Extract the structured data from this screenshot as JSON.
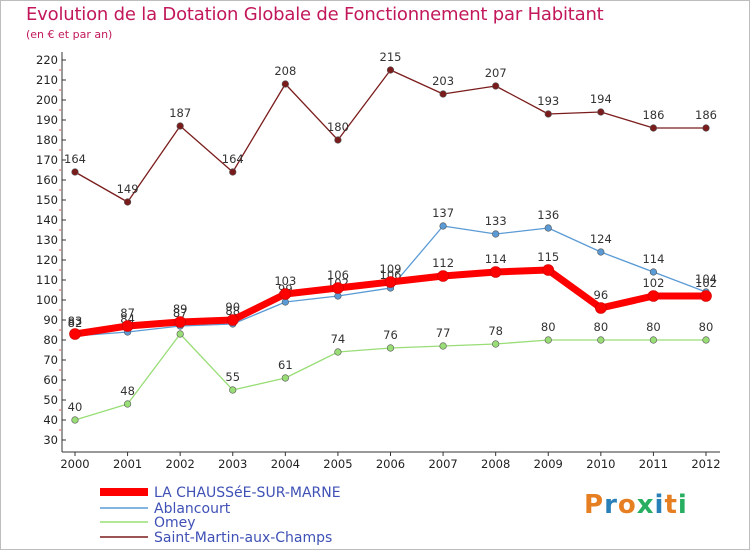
{
  "title": "Evolution de la Dotation Globale de Fonctionnement par Habitant",
  "subtitle": "(en € et par an)",
  "logo": {
    "text": "Proxiti",
    "letters": [
      "P",
      "r",
      "o",
      "x",
      "i",
      "t",
      "i"
    ],
    "colors": [
      "#e67e22",
      "#2980b9",
      "#e67e22",
      "#27ae60",
      "#2980b9",
      "#e67e22",
      "#27ae60"
    ]
  },
  "chart_data": {
    "type": "line",
    "title": "Evolution de la Dotation Globale de Fonctionnement par Habitant",
    "subtitle": "(en € et par an)",
    "xlabel": "",
    "ylabel": "",
    "ylim": [
      30,
      220
    ],
    "ystep": 10,
    "grid": false,
    "legend_position": "bottom-left",
    "categories": [
      "2000",
      "2001",
      "2002",
      "2003",
      "2004",
      "2005",
      "2006",
      "2007",
      "2008",
      "2009",
      "2010",
      "2011",
      "2012"
    ],
    "series": [
      {
        "name": "Saint-Martin-aux-Champs",
        "color": "#7b1c1c",
        "values": [
          164,
          149,
          187,
          164,
          208,
          180,
          215,
          203,
          207,
          193,
          194,
          186,
          186
        ],
        "labels": [
          "164",
          "149",
          "187",
          "164",
          "208",
          "180",
          "215",
          "203",
          "207",
          "193",
          "194",
          "186",
          "186"
        ]
      },
      {
        "name": "Omey",
        "color": "#99dd77",
        "values": [
          40,
          48,
          83,
          55,
          61,
          74,
          76,
          77,
          78,
          80,
          80,
          80,
          80
        ],
        "labels": [
          "40",
          "48",
          "",
          "55",
          "61",
          "74",
          "76",
          "77",
          "78",
          "80",
          "80",
          "80",
          "80"
        ]
      },
      {
        "name": "Ablancourt",
        "color": "#5b9bd5",
        "values": [
          82,
          84,
          87,
          88,
          99,
          102,
          106,
          137,
          133,
          136,
          124,
          114,
          104
        ],
        "labels": [
          "82",
          "84",
          "87",
          "88",
          "99",
          "102",
          "106",
          "137",
          "133",
          "136",
          "124",
          "114",
          "104"
        ]
      },
      {
        "name": "LA CHAUSSéE-SUR-MARNE",
        "color": "#ff0000",
        "values": [
          83,
          87,
          89,
          90,
          103,
          106,
          109,
          112,
          114,
          115,
          96,
          102,
          102
        ],
        "labels": [
          "83",
          "87",
          "89",
          "90",
          "103",
          "106",
          "109",
          "112",
          "114",
          "115",
          "96",
          "102",
          "102"
        ]
      }
    ],
    "legend": [
      {
        "name": "LA CHAUSSéE-SUR-MARNE",
        "color": "#ff0000"
      },
      {
        "name": "Ablancourt",
        "color": "#5b9bd5"
      },
      {
        "name": "Omey",
        "color": "#99dd77"
      },
      {
        "name": "Saint-Martin-aux-Champs",
        "color": "#7b1c1c"
      }
    ]
  }
}
